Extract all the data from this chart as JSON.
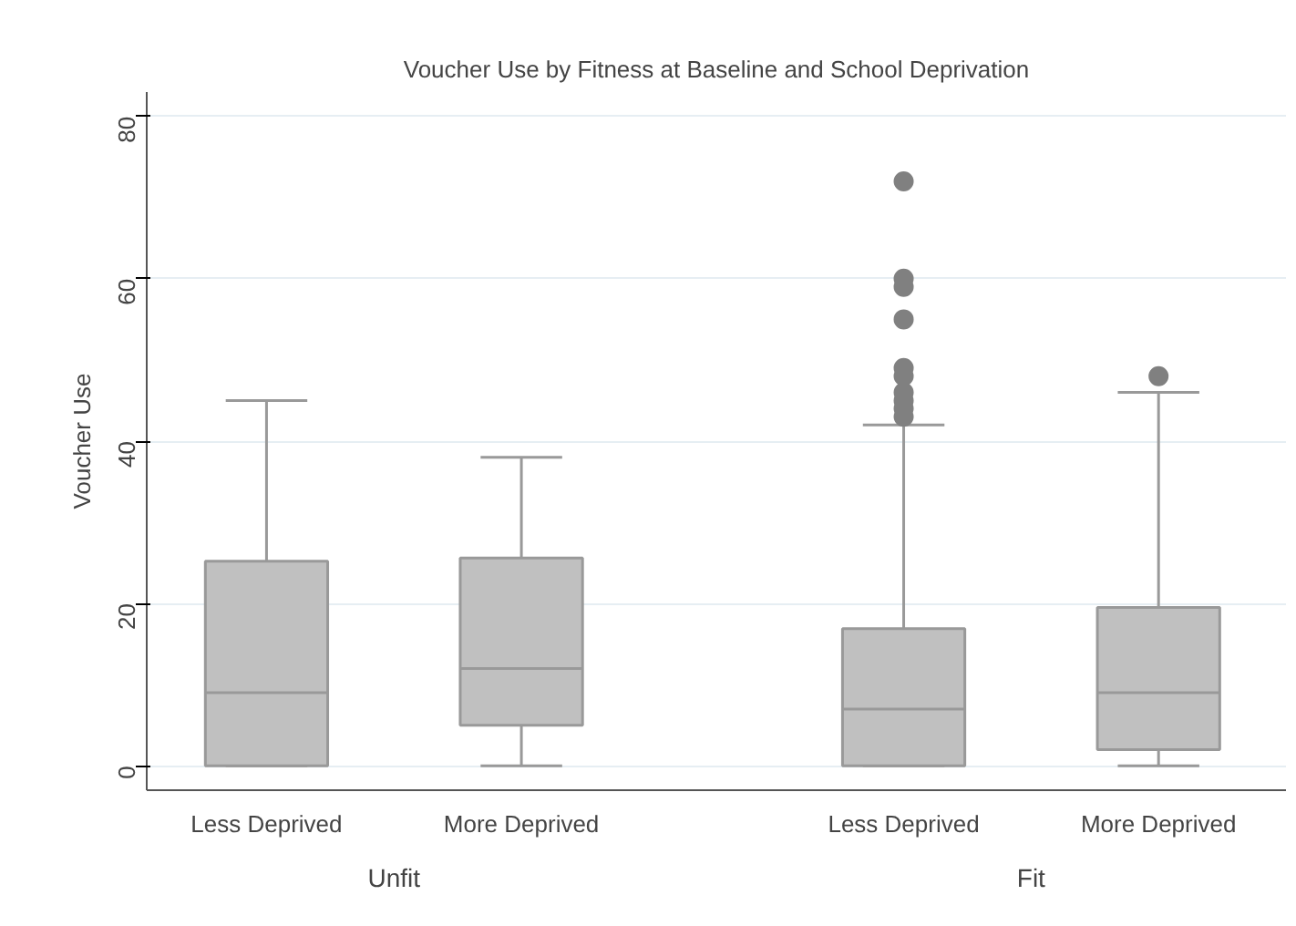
{
  "chart_data": {
    "type": "box",
    "title": "Voucher Use by Fitness at Baseline and School Deprivation",
    "ylabel": "Voucher Use",
    "categories": [
      "Less Deprived",
      "More Deprived",
      "Less Deprived",
      "More Deprived"
    ],
    "boxes": [
      {
        "low": 0,
        "q1": 0,
        "median": 9,
        "q3": 25.2,
        "high": 45
      },
      {
        "low": 0,
        "q1": 5,
        "median": 12,
        "q3": 25.6,
        "high": 38
      },
      {
        "low": 0,
        "q1": 0,
        "median": 7,
        "q3": 16.9,
        "high": 42,
        "outliers": [
          72,
          60,
          59,
          55,
          49,
          48,
          46,
          45,
          44,
          43
        ]
      },
      {
        "low": 0,
        "q1": 2,
        "median": 9,
        "q3": 19.5,
        "high": 46,
        "outliers": [
          48
        ]
      }
    ],
    "color": "#c0c0c0",
    "annotations": [
      "Unfit",
      "Fit"
    ],
    "ylim": [
      -3,
      83
    ],
    "yticks": [
      0,
      20,
      40,
      60,
      80
    ],
    "grid": "y"
  }
}
